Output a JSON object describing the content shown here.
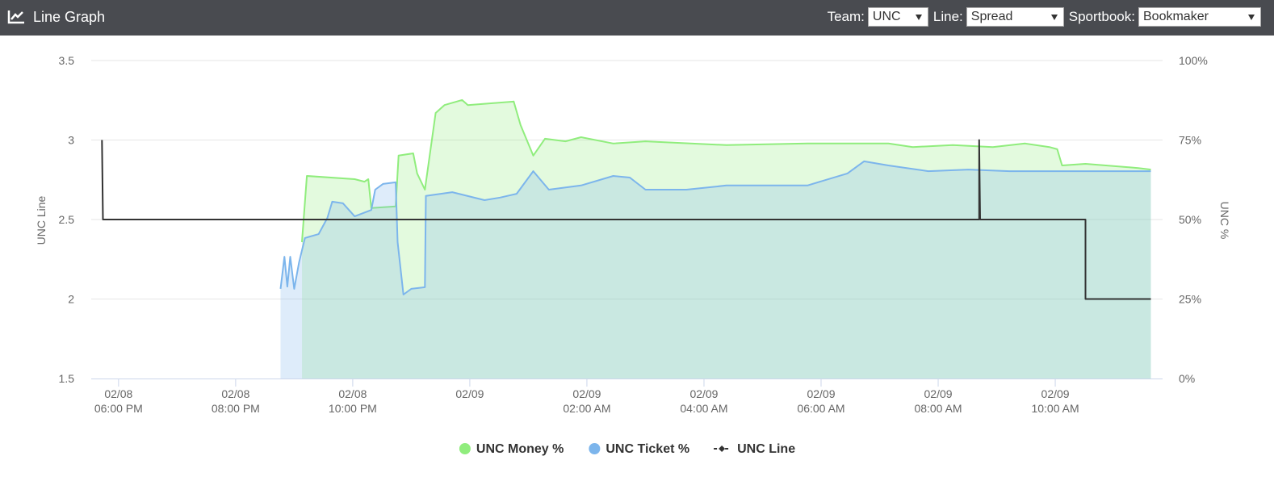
{
  "header": {
    "title": "Line Graph",
    "controls": [
      {
        "label": "Team:",
        "value": "UNC"
      },
      {
        "label": "Line:",
        "value": "Spread"
      },
      {
        "label": "Sportbook:",
        "value": "Bookmaker"
      }
    ]
  },
  "chart_data": {
    "type": "line",
    "y_label": "UNC Line",
    "y2_label": "UNC %",
    "xlim": [
      "02/08 05:32 PM",
      "02/09 11:50 AM"
    ],
    "xticks": [
      {
        "value": "02/08 06:00 PM",
        "label": [
          "02/08",
          "06:00 PM"
        ]
      },
      {
        "value": "02/08 08:00 PM",
        "label": [
          "02/08",
          "08:00 PM"
        ]
      },
      {
        "value": "02/08 10:00 PM",
        "label": [
          "02/08",
          "10:00 PM"
        ]
      },
      {
        "value": "02/09 12:00 AM",
        "label": [
          "02/09",
          ""
        ]
      },
      {
        "value": "02/09 02:00 AM",
        "label": [
          "02/09",
          "02:00 AM"
        ]
      },
      {
        "value": "02/09 04:00 AM",
        "label": [
          "02/09",
          "04:00 AM"
        ]
      },
      {
        "value": "02/09 06:00 AM",
        "label": [
          "02/09",
          "06:00 AM"
        ]
      },
      {
        "value": "02/09 08:00 AM",
        "label": [
          "02/09",
          "08:00 AM"
        ]
      },
      {
        "value": "02/09 10:00 AM",
        "label": [
          "02/09",
          "10:00 AM"
        ]
      }
    ],
    "ylim": [
      1.5,
      3.5
    ],
    "yticks": [
      1.5,
      2,
      2.5,
      3,
      3.5
    ],
    "y2lim": [
      0,
      100
    ],
    "y2ticks": [
      {
        "value": 0,
        "label": "0%"
      },
      {
        "value": 25,
        "label": "25%"
      },
      {
        "value": 50,
        "label": "50%"
      },
      {
        "value": 75,
        "label": "75%"
      },
      {
        "value": 100,
        "label": "100%"
      }
    ],
    "grid": true,
    "legend": "bottom",
    "series": [
      {
        "name": "UNC Money %",
        "color": "#90ed7d",
        "axis": "y2",
        "area": true,
        "marker": "circle",
        "x": [
          "02/08 09:08 PM",
          "02/08 09:13 PM",
          "02/08 10:02 PM",
          "02/08 10:12 PM",
          "02/08 10:16 PM",
          "02/08 10:19 PM",
          "02/08 10:44 PM",
          "02/08 10:47 PM",
          "02/08 11:02 PM",
          "02/08 11:06 PM",
          "02/08 11:14 PM",
          "02/08 11:25 PM",
          "02/08 11:34 PM",
          "02/08 11:52 PM",
          "02/08 11:58 PM",
          "02/09 12:45 AM",
          "02/09 12:52 AM",
          "02/09 01:05 AM",
          "02/09 01:17 AM",
          "02/09 01:38 AM",
          "02/09 01:54 AM",
          "02/09 02:27 AM",
          "02/09 03:00 AM",
          "02/09 04:23 AM",
          "02/09 05:46 AM",
          "02/09 07:09 AM",
          "02/09 07:34 AM",
          "02/09 08:15 AM",
          "02/09 08:56 AM",
          "02/09 09:29 AM",
          "02/09 09:54 AM",
          "02/09 10:02 AM",
          "02/09 10:07 AM",
          "02/09 10:31 AM",
          "02/09 11:25 AM",
          "02/09 11:38 AM"
        ],
        "values": [
          42.9,
          63.7,
          62.7,
          61.9,
          62.7,
          53.6,
          54.1,
          70.1,
          70.8,
          64.5,
          59.4,
          83.5,
          86.0,
          87.6,
          86.0,
          87.1,
          79.7,
          70.1,
          75.4,
          74.6,
          75.9,
          73.9,
          74.6,
          73.4,
          73.9,
          73.9,
          72.8,
          73.4,
          72.8,
          73.9,
          72.8,
          72.1,
          67.0,
          67.5,
          66.2,
          65.7
        ]
      },
      {
        "name": "UNC Ticket %",
        "color": "#7cb5ec",
        "axis": "y2",
        "area": true,
        "marker": "circle",
        "x": [
          "02/08 08:46 PM",
          "02/08 08:50 PM",
          "02/08 08:53 PM",
          "02/08 08:56 PM",
          "02/08 09:00 PM",
          "02/08 09:05 PM",
          "02/08 09:11 PM",
          "02/08 09:25 PM",
          "02/08 09:34 PM",
          "02/08 09:39 PM",
          "02/08 09:50 PM",
          "02/08 10:02 PM",
          "02/08 10:19 PM",
          "02/08 10:23 PM",
          "02/08 10:31 PM",
          "02/08 10:44 PM",
          "02/08 10:46 PM",
          "02/08 10:52 PM",
          "02/08 11:00 PM",
          "02/08 11:14 PM",
          "02/08 11:15 PM",
          "02/08 11:42 PM",
          "02/09 12:15 AM",
          "02/09 12:31 AM",
          "02/09 12:48 AM",
          "02/09 01:05 AM",
          "02/09 01:21 AM",
          "02/09 01:54 AM",
          "02/09 02:27 AM",
          "02/09 02:44 AM",
          "02/09 03:00 AM",
          "02/09 03:42 AM",
          "02/09 04:23 AM",
          "02/09 05:46 AM",
          "02/09 06:27 AM",
          "02/09 06:44 AM",
          "02/09 07:09 AM",
          "02/09 07:50 AM",
          "02/09 08:31 AM",
          "02/09 09:13 AM",
          "02/09 09:54 AM",
          "02/09 10:36 AM",
          "02/09 11:38 AM"
        ],
        "values": [
          28.2,
          38.3,
          28.9,
          38.3,
          28.2,
          36.5,
          44.2,
          45.4,
          50.5,
          55.6,
          55.1,
          51.0,
          53.0,
          59.4,
          61.2,
          61.7,
          42.9,
          26.4,
          28.2,
          28.7,
          57.4,
          58.6,
          56.1,
          56.9,
          58.1,
          65.2,
          59.4,
          60.7,
          63.7,
          63.2,
          59.4,
          59.4,
          60.7,
          60.7,
          64.5,
          68.3,
          67.0,
          65.2,
          65.7,
          65.2,
          65.2,
          65.2,
          65.2
        ]
      },
      {
        "name": "UNC Line",
        "color": "#333333",
        "axis": "y",
        "area": false,
        "marker": "diamond",
        "x": [
          "02/08 05:43 PM",
          "02/08 05:44 PM",
          "02/09 08:42 AM",
          "02/09 08:42 AM",
          "02/09 08:43 AM",
          "02/09 10:31 AM",
          "02/09 10:31 AM",
          "02/09 11:38 AM"
        ],
        "values": [
          3,
          2.5,
          2.5,
          3,
          2.5,
          2.5,
          2,
          2
        ]
      }
    ]
  }
}
